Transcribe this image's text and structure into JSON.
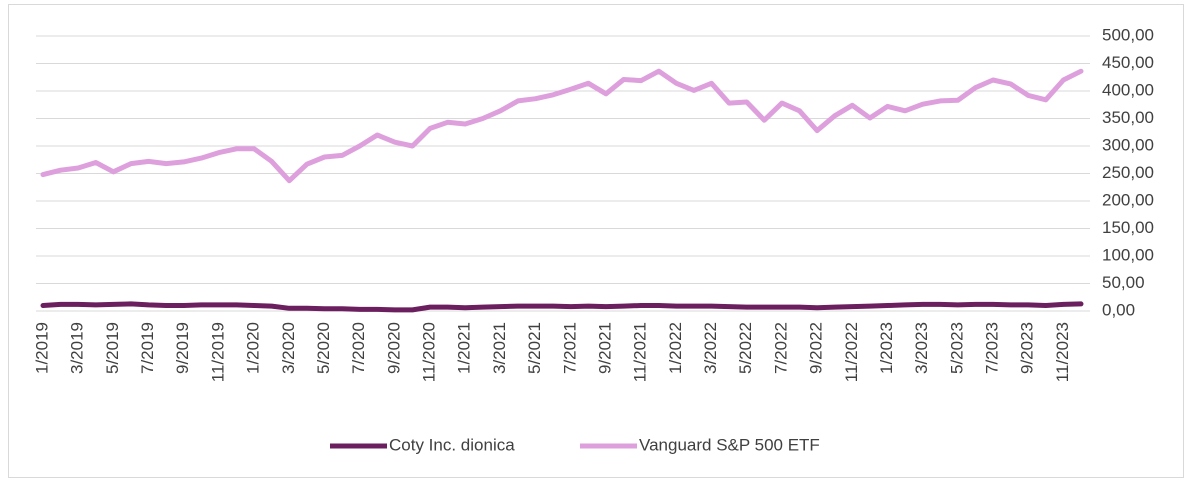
{
  "chart_data": {
    "type": "line",
    "categories": [
      "1/2019",
      null,
      "3/2019",
      null,
      "5/2019",
      null,
      "7/2019",
      null,
      "9/2019",
      null,
      "11/2019",
      null,
      "1/2020",
      null,
      "3/2020",
      null,
      "5/2020",
      null,
      "7/2020",
      null,
      "9/2020",
      null,
      "11/2020",
      null,
      "1/2021",
      null,
      "3/2021",
      null,
      "5/2021",
      null,
      "7/2021",
      null,
      "9/2021",
      null,
      "11/2021",
      null,
      "1/2022",
      null,
      "3/2022",
      null,
      "5/2022",
      null,
      "7/2022",
      null,
      "9/2022",
      null,
      "11/2022",
      null,
      "1/2023",
      null,
      "3/2023",
      null,
      "5/2023",
      null,
      "7/2023",
      null,
      "9/2023",
      null,
      "11/2023",
      null
    ],
    "series": [
      {
        "name": "Coty Inc. dionica",
        "color": "#6b1f5e",
        "values": [
          10,
          12,
          12,
          11,
          12,
          13,
          11,
          10,
          10,
          11,
          11,
          11,
          10,
          9,
          5,
          5,
          4,
          4,
          3,
          3,
          2,
          2,
          7,
          7,
          6,
          7,
          8,
          9,
          9,
          9,
          8,
          9,
          8,
          9,
          10,
          10,
          9,
          9,
          9,
          8,
          7,
          7,
          7,
          7,
          6,
          7,
          8,
          9,
          10,
          11,
          12,
          12,
          11,
          12,
          12,
          11,
          11,
          10,
          12,
          13
        ]
      },
      {
        "name": "Vanguard S&P 500 ETF",
        "color": "#dda0dd",
        "values": [
          248,
          256,
          260,
          270,
          253,
          268,
          272,
          268,
          271,
          278,
          288,
          295,
          295,
          272,
          237,
          267,
          280,
          283,
          300,
          320,
          307,
          300,
          332,
          343,
          340,
          350,
          364,
          382,
          386,
          393,
          403,
          414,
          395,
          421,
          419,
          436,
          414,
          401,
          414,
          378,
          380,
          347,
          378,
          364,
          328,
          355,
          374,
          351,
          372,
          364,
          376,
          382,
          383,
          406,
          420,
          413,
          392,
          384,
          420,
          436
        ]
      }
    ],
    "ylim": [
      0,
      500
    ],
    "yticks": [
      {
        "value": 0,
        "label": "0,00"
      },
      {
        "value": 50,
        "label": "50,00"
      },
      {
        "value": 100,
        "label": "100,00"
      },
      {
        "value": 150,
        "label": "150,00"
      },
      {
        "value": 200,
        "label": "200,00"
      },
      {
        "value": 250,
        "label": "250,00"
      },
      {
        "value": 300,
        "label": "300,00"
      },
      {
        "value": 350,
        "label": "350,00"
      },
      {
        "value": 400,
        "label": "400,00"
      },
      {
        "value": 450,
        "label": "450,00"
      },
      {
        "value": 500,
        "label": "500,00"
      }
    ],
    "grid": true,
    "legend": "bottom"
  }
}
